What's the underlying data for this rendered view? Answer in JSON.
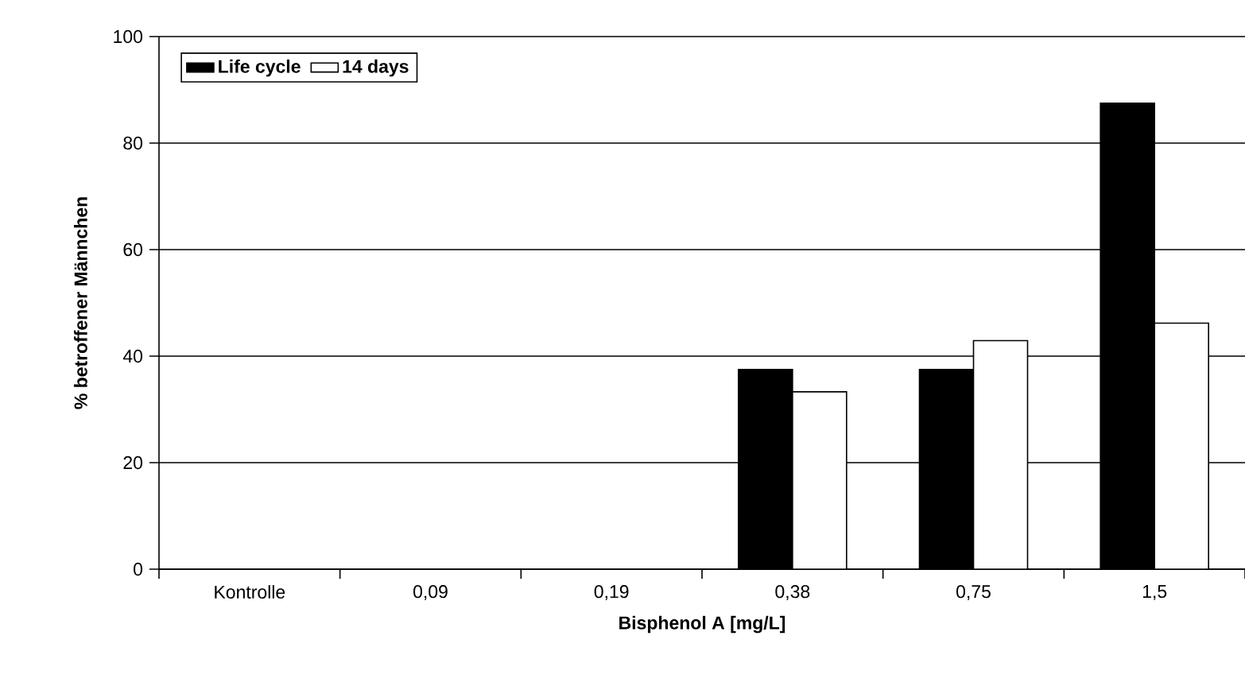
{
  "chart_data": {
    "type": "bar",
    "xlabel": "Bisphenol A [mg/L]",
    "ylabel": "% betroffener Männchen",
    "categories": [
      "Kontrolle",
      "0,09",
      "0,19",
      "0,38",
      "0,75",
      "1,5"
    ],
    "series": [
      {
        "name": "Life cycle",
        "color": "#000000",
        "values": [
          0,
          0,
          0,
          37.5,
          37.5,
          87.5
        ]
      },
      {
        "name": "14 days",
        "color": "#ffffff",
        "values": [
          0,
          0,
          0,
          33.3,
          42.9,
          46.2
        ]
      }
    ],
    "ylim": [
      0,
      100
    ],
    "yticks": [
      0,
      20,
      40,
      60,
      80,
      100
    ],
    "grid": "y",
    "legend": "top left"
  }
}
